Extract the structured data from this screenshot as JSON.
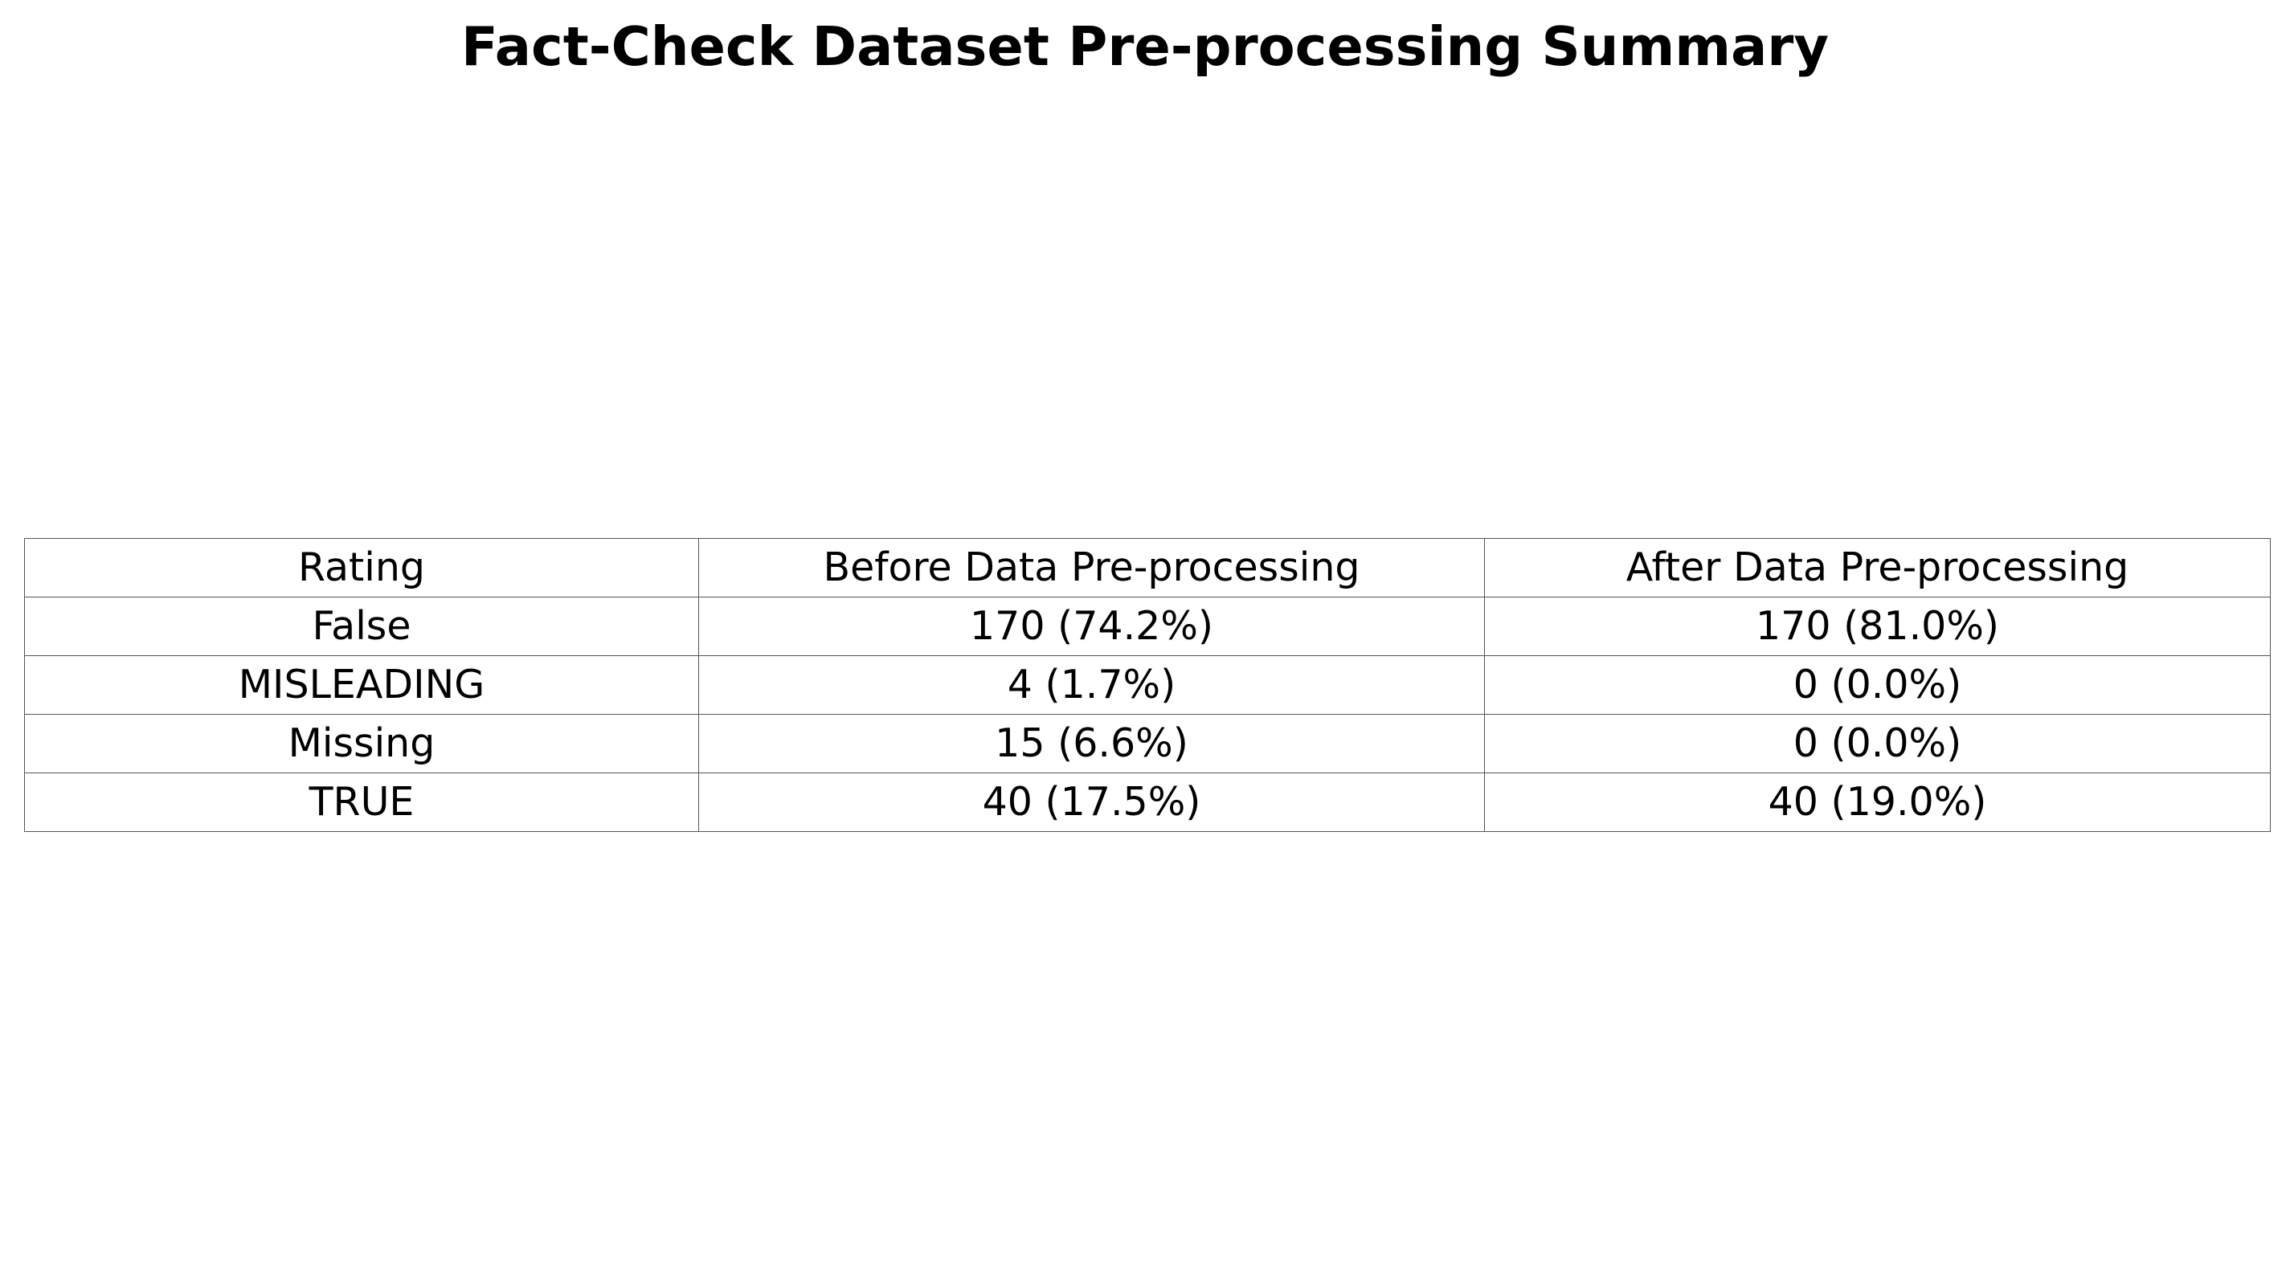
{
  "chart_data": {
    "type": "table",
    "title": "Fact-Check Dataset Pre-processing Summary",
    "columns": [
      "Rating",
      "Before Data Pre-processing",
      "After Data Pre-processing"
    ],
    "rows": [
      [
        "False",
        "170 (74.2%)",
        "170 (81.0%)"
      ],
      [
        "MISLEADING",
        "4 (1.7%)",
        "0 (0.0%)"
      ],
      [
        "Missing",
        "15 (6.6%)",
        "0 (0.0%)"
      ],
      [
        "TRUE",
        "40 (17.5%)",
        "40 (19.0%)"
      ]
    ],
    "border_color": "#555555"
  }
}
